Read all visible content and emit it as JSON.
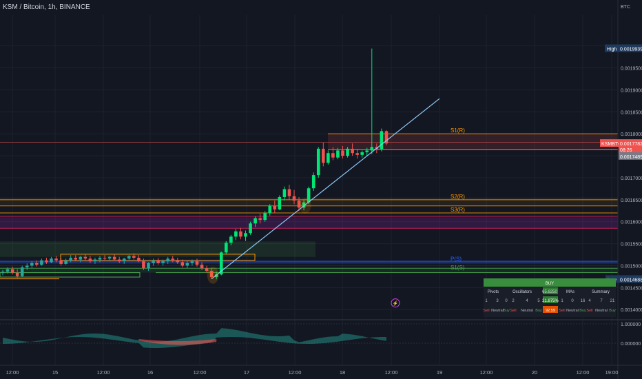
{
  "header": {
    "title": "KSM / Bitcoin, 1h, BINANCE",
    "currency": "BTC"
  },
  "price_tags": {
    "high_label": "High",
    "high_value": "0.0019939",
    "symbol": "KSMBTC",
    "last_price": "0.0017782",
    "countdown": "08:26",
    "marker_price": "0.0017489",
    "low_label": "Low",
    "low_value": "0.0014688"
  },
  "pivot_labels": [
    "S1(R)",
    "S2(R)",
    "S3(R)",
    "P(S)",
    "S1(S)"
  ],
  "summary_table": {
    "header": "BUY",
    "columns": [
      "Pivots",
      "Oscillators",
      "65.6250",
      "MAs",
      "Summary"
    ],
    "counts": [
      "1",
      "3",
      "0",
      "2",
      "4",
      "5",
      "21.875%",
      "1",
      "0",
      "16",
      "4",
      "7",
      "21"
    ],
    "signals": [
      "Sell",
      "Neutral",
      "Buy",
      "Sell",
      "Neutral",
      "Buy",
      "92.59",
      "Sell",
      "Neutral",
      "Buy",
      "Sell",
      "Neutral",
      "Buy"
    ]
  },
  "indicator": {
    "upper": "1.000000",
    "lower": "0.000000"
  },
  "colors": {
    "bg": "#131722",
    "up": "#26a69a",
    "upBright": "#00e676",
    "down": "#ef5350",
    "grid": "#1e222d",
    "trend": "#90caf9"
  },
  "chart_data": {
    "type": "candlestick",
    "symbol": "KSMBTC",
    "interval": "1h",
    "x_tick_labels": [
      "12:00",
      "15",
      "12:00",
      "16",
      "12:00",
      "17",
      "12:00",
      "18",
      "12:00",
      "19",
      "12:00",
      "20",
      "12:00",
      "19:00"
    ],
    "y_tick_labels": [
      "0.0020000",
      "0.0019500",
      "0.0019000",
      "0.0018500",
      "0.0018000",
      "0.0017500",
      "0.0017000",
      "0.0016500",
      "0.0016000",
      "0.0015500",
      "0.0015000",
      "0.0014500",
      "0.0014000"
    ],
    "ylim": [
      0.00138,
      0.00207
    ],
    "y_ticks": [
      0.002,
      0.00195,
      0.0019,
      0.00185,
      0.0018,
      0.00175,
      0.0017,
      0.00165,
      0.0016,
      0.00155,
      0.0015,
      0.00145,
      0.0014
    ],
    "high": 0.0019939,
    "low": 0.0014688,
    "last": 0.0017782,
    "candles": [
      [
        0.001484,
        0.00149,
        0.001478,
        0.001486
      ],
      [
        0.001486,
        0.001496,
        0.001482,
        0.001492
      ],
      [
        0.001492,
        0.001498,
        0.00148,
        0.001484
      ],
      [
        0.001484,
        0.001492,
        0.001472,
        0.001476
      ],
      [
        0.001476,
        0.0015,
        0.001474,
        0.001496
      ],
      [
        0.001496,
        0.001505,
        0.00149,
        0.0015
      ],
      [
        0.0015,
        0.00151,
        0.001494,
        0.001506
      ],
      [
        0.001506,
        0.001512,
        0.001498,
        0.001502
      ],
      [
        0.001502,
        0.001516,
        0.0015,
        0.001512
      ],
      [
        0.001512,
        0.001518,
        0.001504,
        0.001508
      ],
      [
        0.001508,
        0.00152,
        0.001506,
        0.001516
      ],
      [
        0.001516,
        0.001522,
        0.001508,
        0.001512
      ],
      [
        0.001512,
        0.001518,
        0.0015,
        0.001504
      ],
      [
        0.001504,
        0.001516,
        0.001502,
        0.001512
      ],
      [
        0.001512,
        0.001524,
        0.001508,
        0.001518
      ],
      [
        0.001518,
        0.001524,
        0.00151,
        0.001514
      ],
      [
        0.001514,
        0.001522,
        0.001508,
        0.00152
      ],
      [
        0.00152,
        0.001526,
        0.001512,
        0.001516
      ],
      [
        0.001516,
        0.001522,
        0.001506,
        0.00151
      ],
      [
        0.00151,
        0.001518,
        0.001504,
        0.001514
      ],
      [
        0.001514,
        0.001522,
        0.001508,
        0.001518
      ],
      [
        0.001518,
        0.001524,
        0.001512,
        0.001516
      ],
      [
        0.001516,
        0.001522,
        0.00151,
        0.00152
      ],
      [
        0.00152,
        0.001526,
        0.001512,
        0.001514
      ],
      [
        0.001514,
        0.00152,
        0.001506,
        0.00151
      ],
      [
        0.00151,
        0.001518,
        0.001504,
        0.001516
      ],
      [
        0.001516,
        0.001524,
        0.001512,
        0.001522
      ],
      [
        0.001522,
        0.001528,
        0.001514,
        0.001518
      ],
      [
        0.001518,
        0.001524,
        0.001508,
        0.00151
      ],
      [
        0.00151,
        0.001516,
        0.00149,
        0.001494
      ],
      [
        0.001494,
        0.001508,
        0.001488,
        0.001506
      ],
      [
        0.001506,
        0.001516,
        0.0015,
        0.001512
      ],
      [
        0.001512,
        0.001518,
        0.001502,
        0.001506
      ],
      [
        0.001506,
        0.001514,
        0.0015,
        0.00151
      ],
      [
        0.00151,
        0.00152,
        0.001504,
        0.001516
      ],
      [
        0.001516,
        0.001522,
        0.001508,
        0.001512
      ],
      [
        0.001512,
        0.001518,
        0.001504,
        0.001508
      ],
      [
        0.001508,
        0.001514,
        0.001496,
        0.0015
      ],
      [
        0.0015,
        0.00151,
        0.001494,
        0.001506
      ],
      [
        0.001506,
        0.001514,
        0.0015,
        0.00151
      ],
      [
        0.00151,
        0.001516,
        0.001498,
        0.001502
      ],
      [
        0.001502,
        0.001508,
        0.00149,
        0.001494
      ],
      [
        0.001494,
        0.0015,
        0.001484,
        0.001488
      ],
      [
        0.001488,
        0.001494,
        0.00147,
        0.001474
      ],
      [
        0.001474,
        0.001486,
        0.001469,
        0.00148
      ],
      [
        0.00148,
        0.001532,
        0.001478,
        0.00153
      ],
      [
        0.00153,
        0.001556,
        0.001526,
        0.001552
      ],
      [
        0.001552,
        0.00157,
        0.001546,
        0.001566
      ],
      [
        0.001566,
        0.001584,
        0.001558,
        0.001578
      ],
      [
        0.001578,
        0.001586,
        0.00156,
        0.001566
      ],
      [
        0.001566,
        0.00158,
        0.001556,
        0.001574
      ],
      [
        0.001574,
        0.0016,
        0.00157,
        0.001596
      ],
      [
        0.001596,
        0.001612,
        0.001588,
        0.001608
      ],
      [
        0.001608,
        0.001618,
        0.001596,
        0.001604
      ],
      [
        0.001604,
        0.001624,
        0.0016,
        0.00162
      ],
      [
        0.00162,
        0.00164,
        0.001614,
        0.001636
      ],
      [
        0.001636,
        0.001648,
        0.00162,
        0.001628
      ],
      [
        0.001628,
        0.00166,
        0.001626,
        0.001656
      ],
      [
        0.001656,
        0.00168,
        0.001648,
        0.001674
      ],
      [
        0.001674,
        0.001684,
        0.00165,
        0.001658
      ],
      [
        0.001658,
        0.001672,
        0.00164,
        0.001648
      ],
      [
        0.001648,
        0.001656,
        0.001624,
        0.001632
      ],
      [
        0.001632,
        0.00165,
        0.001626,
        0.001644
      ],
      [
        0.001644,
        0.00168,
        0.00164,
        0.001676
      ],
      [
        0.001676,
        0.001712,
        0.00167,
        0.001706
      ],
      [
        0.001706,
        0.00177,
        0.0017,
        0.001766
      ],
      [
        0.001766,
        0.00178,
        0.001726,
        0.001734
      ],
      [
        0.001734,
        0.001762,
        0.00173,
        0.001756
      ],
      [
        0.001756,
        0.00177,
        0.00174,
        0.001746
      ],
      [
        0.001746,
        0.001768,
        0.001742,
        0.001762
      ],
      [
        0.001762,
        0.001772,
        0.001744,
        0.00175
      ],
      [
        0.00175,
        0.00177,
        0.001746,
        0.001766
      ],
      [
        0.001766,
        0.001778,
        0.00175,
        0.001756
      ],
      [
        0.001756,
        0.001764,
        0.001744,
        0.001752
      ],
      [
        0.001752,
        0.001762,
        0.001746,
        0.001758
      ],
      [
        0.001758,
        0.001768,
        0.00175,
        0.001762
      ],
      [
        0.001762,
        0.001994,
        0.001754,
        0.00177
      ],
      [
        0.00177,
        0.001778,
        0.001756,
        0.001764
      ],
      [
        0.001764,
        0.001812,
        0.00176,
        0.001806
      ],
      [
        0.001806,
        0.001808,
        0.001774,
        0.001778
      ]
    ],
    "pivot_levels": [
      {
        "label": "S1(R)",
        "price": 0.0018,
        "color": "#ff9800"
      },
      {
        "label": "S2(R)",
        "price": 0.00165,
        "color": "#ff9800"
      },
      {
        "label": "S3(R)",
        "price": 0.00162,
        "color": "#ff9800"
      },
      {
        "label": "P(S)",
        "price": 0.001508,
        "color": "#2962ff"
      },
      {
        "label": "S1(S)",
        "price": 0.001488,
        "color": "#4caf50"
      }
    ],
    "trendline": {
      "from": [
        43,
        0.00147
      ],
      "to": [
        90,
        0.00181
      ]
    }
  }
}
